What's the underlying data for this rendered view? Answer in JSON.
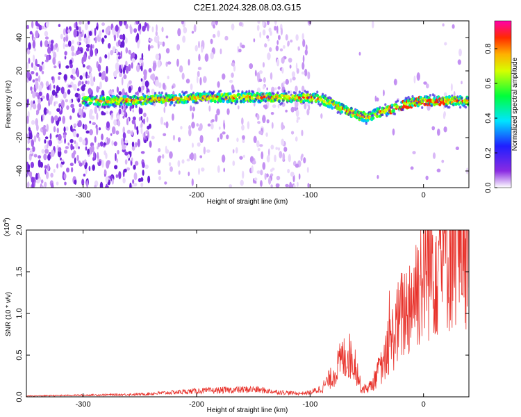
{
  "title": "C2E1.2024.328.08.03.G15",
  "colorbar": {
    "label": "Normalized spectral amplitude",
    "ticks": [
      "0.0",
      "0.2",
      "0.4",
      "0.6",
      "0.8"
    ],
    "tick_values": [
      0.0,
      0.2,
      0.4,
      0.6,
      0.8
    ],
    "range": [
      0,
      0.96
    ]
  },
  "chart_data": [
    {
      "type": "heatmap",
      "title": "",
      "xlabel": "Height of straight line (km)",
      "ylabel": "Frequency (Hz)",
      "xlim": [
        -350,
        40
      ],
      "ylim": [
        -50,
        50
      ],
      "xticks": [
        -300,
        -200,
        -100,
        0
      ],
      "yticks": [
        -40,
        -20,
        0,
        20,
        40
      ],
      "xtick_labels": [
        "-300",
        "-200",
        "-100",
        "0"
      ],
      "ytick_labels": [
        "-40",
        "-20",
        "0",
        "20",
        "40"
      ],
      "ridge": {
        "x": [
          -300,
          -280,
          -260,
          -240,
          -220,
          -200,
          -180,
          -160,
          -140,
          -120,
          -100,
          -90,
          -80,
          -70,
          -60,
          -50,
          -40,
          -30,
          -20,
          -10,
          0,
          10,
          20,
          35
        ],
        "y": [
          2,
          2,
          2,
          3,
          3,
          4,
          4,
          4,
          4,
          4,
          4,
          3,
          0,
          -3,
          -6,
          -8,
          -5,
          -3,
          -1,
          1,
          2,
          2,
          2,
          2
        ]
      }
    },
    {
      "type": "line",
      "title": "",
      "xlabel": "Height of straight line (km)",
      "ylabel": "SNR (10 * v/v)",
      "scale_label": "(x10",
      "scale_exp": "4",
      "scale_close": ")",
      "xlim": [
        -350,
        40
      ],
      "ylim": [
        0,
        2.0
      ],
      "xticks": [
        -300,
        -200,
        -100,
        0
      ],
      "yticks": [
        0.0,
        0.5,
        1.0,
        1.5,
        2.0
      ],
      "xtick_labels": [
        "-300",
        "-200",
        "-100",
        "0"
      ],
      "ytick_labels": [
        "0.0",
        "0.5",
        "1.0",
        "1.5",
        "2.0"
      ],
      "series": [
        {
          "color": "#e8312a",
          "x": [
            -350,
            -300,
            -250,
            -225,
            -200,
            -175,
            -150,
            -130,
            -110,
            -100,
            -90,
            -80,
            -72,
            -66,
            -60,
            -55,
            -50,
            -45,
            -40,
            -35,
            -30,
            -25,
            -20,
            -15,
            -10,
            -5,
            0,
            5,
            10,
            15,
            20,
            25,
            30,
            35,
            40
          ],
          "y": [
            0.01,
            0.02,
            0.03,
            0.05,
            0.07,
            0.08,
            0.09,
            0.06,
            0.04,
            0.05,
            0.1,
            0.25,
            0.45,
            0.5,
            0.4,
            0.1,
            0.1,
            0.15,
            0.3,
            0.4,
            0.6,
            0.8,
            0.95,
            1.05,
            1.2,
            1.35,
            1.5,
            1.6,
            1.65,
            1.72,
            1.78,
            1.85,
            1.9,
            1.95,
            1.97
          ]
        }
      ]
    }
  ]
}
